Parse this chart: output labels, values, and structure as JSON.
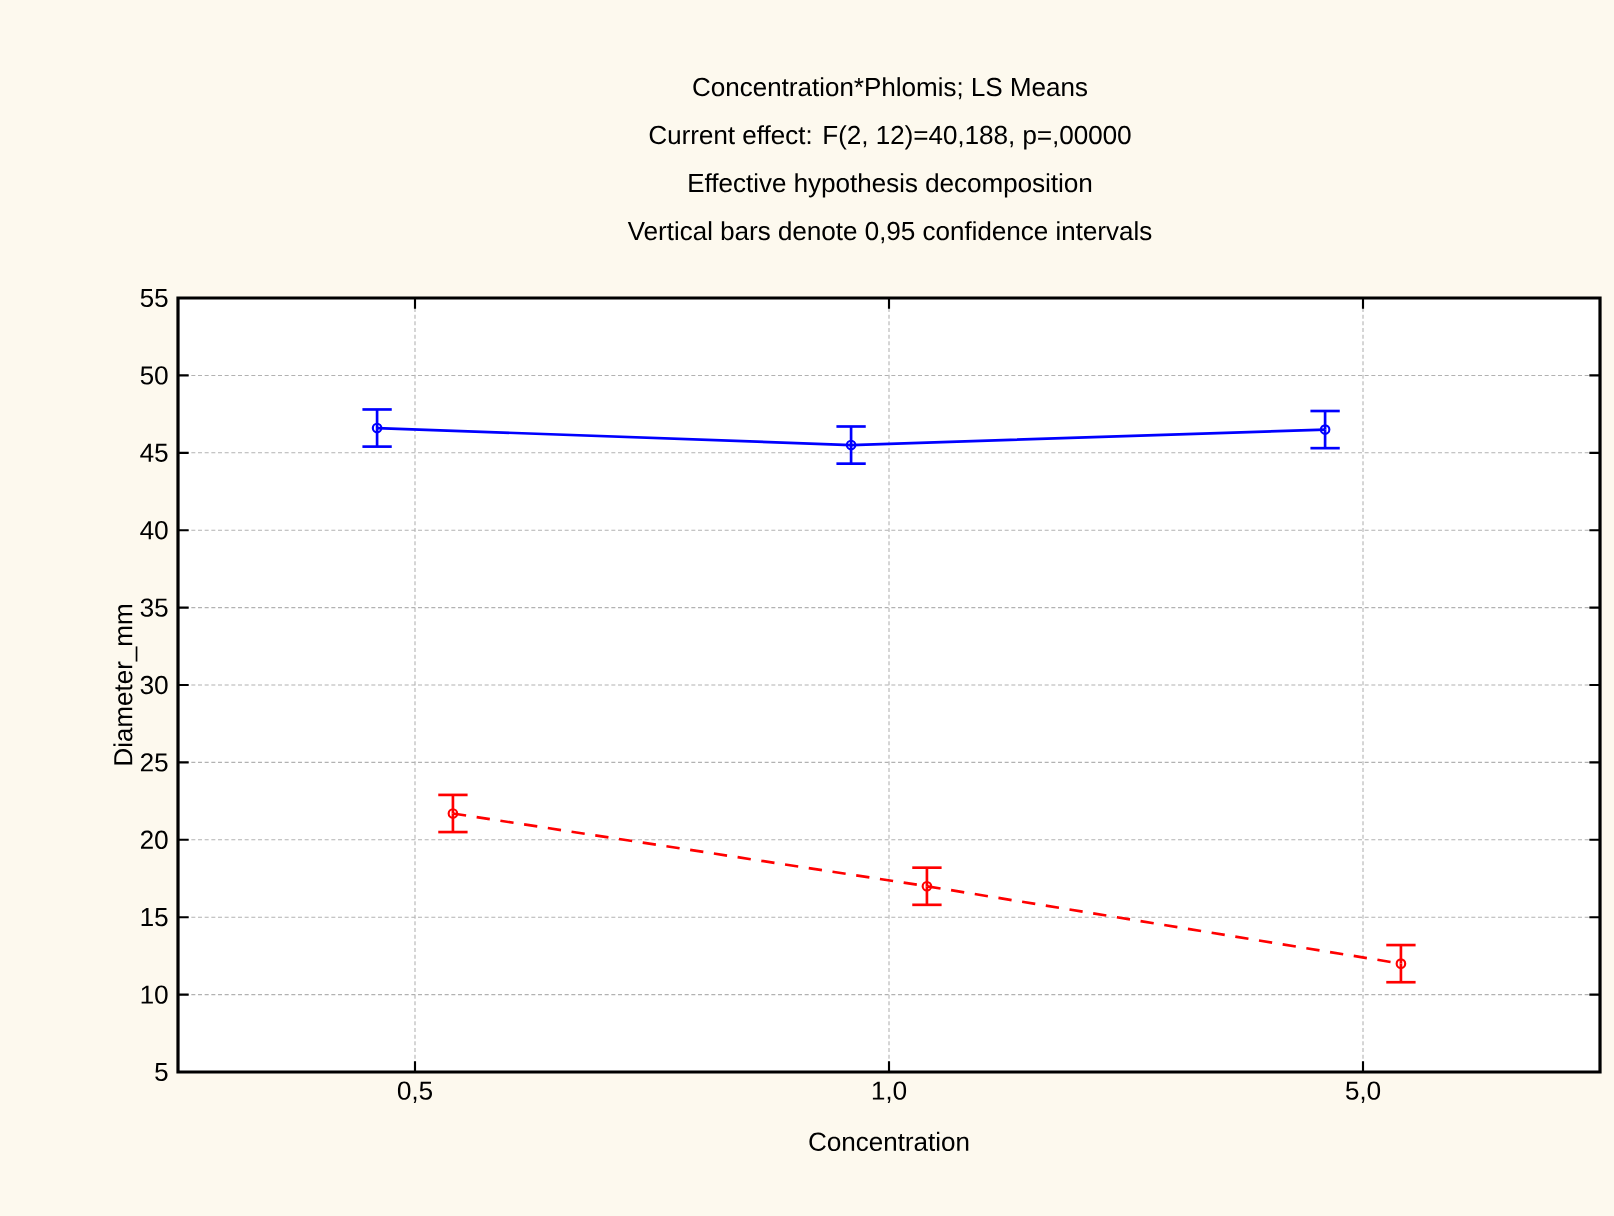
{
  "chart_data": {
    "type": "line",
    "title": "Concentration*Phlomis; LS Means",
    "subtitle": "Current effect: F(2, 12)=40,188, p=,00000",
    "annotations": [
      "Effective hypothesis decomposition",
      "Vertical bars denote 0,95 confidence intervals"
    ],
    "xlabel": "Concentration",
    "ylabel": "Diameter_mm",
    "categories": [
      "0,5",
      "1,0",
      "5,0"
    ],
    "series": [
      {
        "color": "#0000ff",
        "line_style": "solid",
        "values": [
          46.6,
          45.5,
          46.5
        ],
        "errors": [
          1.2,
          1.2,
          1.2
        ]
      },
      {
        "color": "#ff0000",
        "line_style": "dashed",
        "values": [
          21.7,
          17.0,
          12.0
        ],
        "errors": [
          1.2,
          1.2,
          1.2
        ]
      }
    ],
    "ylim": [
      5,
      55
    ],
    "yticks": [
      5,
      10,
      15,
      20,
      25,
      30,
      35,
      40,
      45,
      50,
      55
    ],
    "grid": true,
    "marker": "circle"
  }
}
